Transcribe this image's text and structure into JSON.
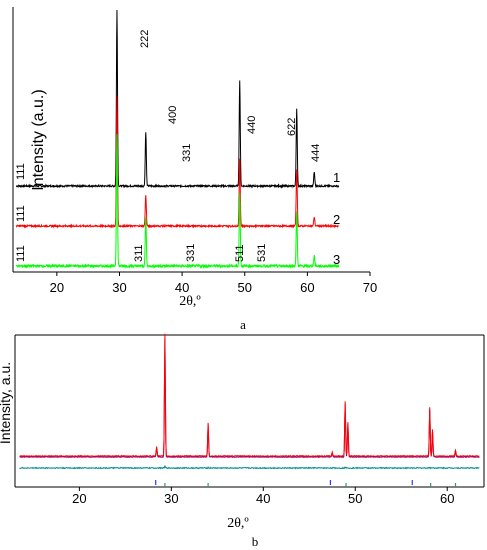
{
  "chart_data": [
    {
      "panel_label": "a",
      "type": "line",
      "xlabel": "2θ,º",
      "ylabel": "Intensity (a.u.)",
      "xlim": [
        13,
        70
      ],
      "x_ticks": [
        20,
        30,
        40,
        50,
        60,
        70
      ],
      "grid": false,
      "series": [
        {
          "name": "1",
          "color": "#000000",
          "peaks": [
            {
              "x": 29.6,
              "height": 1.0
            },
            {
              "x": 34.2,
              "height": 0.31
            },
            {
              "x": 49.2,
              "height": 0.6
            },
            {
              "x": 58.3,
              "height": 0.44
            },
            {
              "x": 61.1,
              "height": 0.08
            }
          ]
        },
        {
          "name": "2",
          "color": "#ff0000",
          "peaks": [
            {
              "x": 29.6,
              "height": 1.0
            },
            {
              "x": 34.2,
              "height": 0.24
            },
            {
              "x": 49.2,
              "height": 0.52
            },
            {
              "x": 58.3,
              "height": 0.44
            },
            {
              "x": 61.1,
              "height": 0.07
            }
          ]
        },
        {
          "name": "3",
          "color": "#00ff00",
          "peaks": [
            {
              "x": 29.6,
              "height": 1.0
            },
            {
              "x": 34.2,
              "height": 0.37
            },
            {
              "x": 49.2,
              "height": 0.56
            },
            {
              "x": 58.3,
              "height": 0.42
            },
            {
              "x": 61.1,
              "height": 0.08
            }
          ]
        }
      ],
      "annotations": [
        {
          "text": "222",
          "x": 29.6
        },
        {
          "text": "400",
          "x": 34.2
        },
        {
          "text": "331",
          "x": 37.2
        },
        {
          "text": "440",
          "x": 49.2
        },
        {
          "text": "622",
          "x": 58.3
        },
        {
          "text": "444",
          "x": 61.1
        },
        {
          "text": "111",
          "x": 15.0
        },
        {
          "text": "111",
          "x": 15.0
        },
        {
          "text": "111",
          "x": 15.0
        },
        {
          "text": "311",
          "x": 28.3
        },
        {
          "text": "331",
          "x": 37.2
        },
        {
          "text": "511",
          "x": 45.8
        },
        {
          "text": "531",
          "x": 50.3
        }
      ]
    },
    {
      "panel_label": "b",
      "type": "line",
      "xlabel": "2θ,º",
      "ylabel": "Intensity, a.u.",
      "xlim": [
        13,
        64
      ],
      "x_ticks": [
        20,
        30,
        40,
        50,
        60
      ],
      "grid": false,
      "series": [
        {
          "color": "#ff0000",
          "peaks": [
            {
              "x": 28.4,
              "height": 0.08
            },
            {
              "x": 29.3,
              "height": 1.0
            },
            {
              "x": 34.0,
              "height": 0.27
            },
            {
              "x": 47.5,
              "height": 0.03
            },
            {
              "x": 48.9,
              "height": 0.45
            },
            {
              "x": 49.2,
              "height": 0.28
            },
            {
              "x": 58.1,
              "height": 0.4
            },
            {
              "x": 58.4,
              "height": 0.22
            },
            {
              "x": 60.9,
              "height": 0.05
            }
          ]
        },
        {
          "color": "#800080",
          "peaks": []
        },
        {
          "color": "#008b8b",
          "peaks": []
        }
      ],
      "reflection_marks": {
        "blue": [
          28.3,
          47.3,
          56.2
        ],
        "green": [
          29.3,
          34.0,
          49.0,
          58.2,
          60.9
        ]
      }
    }
  ]
}
